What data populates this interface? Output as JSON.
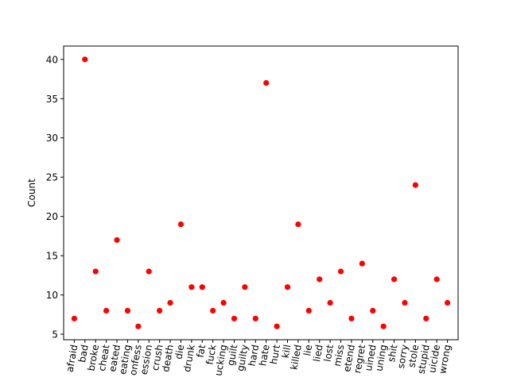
{
  "chart_data": {
    "type": "scatter",
    "title": "",
    "xlabel": "",
    "ylabel": "Count",
    "ylim": [
      4.3,
      41.7
    ],
    "yticks": [
      5,
      10,
      15,
      20,
      25,
      30,
      35,
      40
    ],
    "grid": false,
    "marker_color": "#ff0000",
    "categories": [
      "afraid",
      "bad",
      "broke",
      "cheat",
      "eated",
      "eating",
      "onfess",
      "ession",
      "crush",
      "death",
      "die",
      "drunk",
      "fat",
      "fuck",
      "ucking",
      "guilt",
      "guilty",
      "hard",
      "hate",
      "hurt",
      "kill",
      "killed",
      "lie",
      "lied",
      "lost",
      "miss",
      "etend",
      "regret",
      "uined",
      "uning",
      "shit",
      "sorry",
      "stole",
      "stupid",
      "uicide",
      "wrong"
    ],
    "values": [
      7,
      40,
      13,
      8,
      17,
      8,
      6,
      13,
      8,
      9,
      19,
      11,
      11,
      8,
      9,
      7,
      11,
      7,
      37,
      6,
      11,
      19,
      8,
      12,
      9,
      13,
      7,
      14,
      8,
      6,
      12,
      9,
      24,
      7,
      12,
      9
    ]
  }
}
